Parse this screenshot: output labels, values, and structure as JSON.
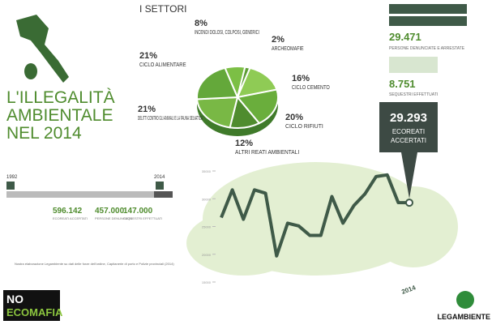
{
  "header": {
    "section": "I SETTORI",
    "title1": "L'ILLEGALITÀ",
    "title2": "AMBIENTALE",
    "title3": "NEL 2014"
  },
  "stats": {
    "people": "29.471",
    "people_label": "PERSONE DENUNCIATE E ARRESTATE",
    "seizures": "8.751",
    "seizures_label": "SEQUESTRI EFFETTUATI"
  },
  "callout": {
    "value": "29.293",
    "label1": "ECOREATI",
    "label2": "ACCERTATI"
  },
  "timeline": {
    "start": "1992",
    "end": "2014",
    "totals": [
      {
        "value": "596.142",
        "label": "ECOREATI ACCERTATI"
      },
      {
        "value": "457.000",
        "label": "PERSONE DENUNCIATE"
      },
      {
        "value": "147.000",
        "label": "SEQUESTRI EFFETTUATI"
      }
    ]
  },
  "footnote": "Nostra elaborazione Legambiente su dati delle forze dell'ordine, Capitanerie di porto e Polizie provinciali (2014)",
  "logos": {
    "left1": "NO",
    "left2": "ECOMAFIA",
    "right": "LEGAMBIENTE"
  },
  "chart_data": [
    {
      "type": "pie",
      "categories": [
        "INCENDI DOLOSI, COLPOSI, GENERICI",
        "ARCHEOMAFIE",
        "CICLO CEMENTO",
        "CICLO RIFIUTI",
        "ALTRI REATI AMBIENTALI",
        "DELITTI CONTRO GLI ANIMALI E LA FAUNA SELVATICA",
        "CICLO ALIMENTARE"
      ],
      "values": [
        8,
        2,
        16,
        20,
        12,
        21,
        21
      ],
      "value_labels": [
        "8%",
        "2%",
        "16%",
        "20%",
        "12%",
        "21%",
        "21%"
      ],
      "colors": [
        "#7cbf45",
        "#5e9e36",
        "#8fcb55",
        "#6aae3c",
        "#4f8c2e",
        "#79b845",
        "#64a83a"
      ]
    },
    {
      "type": "line",
      "categories": [
        null,
        null,
        null,
        null,
        null,
        null,
        null,
        null,
        null,
        null,
        null,
        null,
        null,
        null,
        null,
        null,
        null,
        "2014"
      ],
      "values": [
        26600,
        31600,
        26300,
        31600,
        31000,
        19700,
        25600,
        25100,
        23400,
        23400,
        30400,
        25600,
        28800,
        30900,
        34000,
        34300,
        29300,
        29293
      ],
      "color": "#3f5a48",
      "ylim": [
        15000,
        35000
      ],
      "yticks": [
        15000,
        20000,
        25000,
        30000,
        35000
      ]
    }
  ]
}
